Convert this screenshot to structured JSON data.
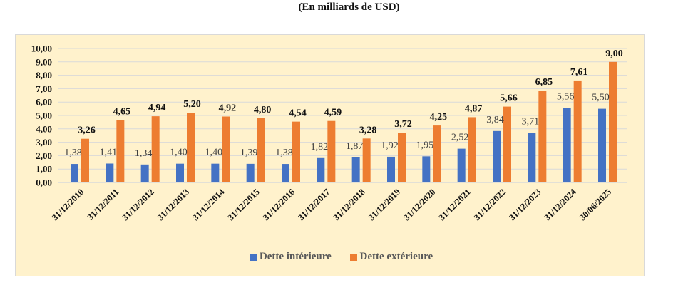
{
  "chart_data": {
    "type": "bar",
    "title": "(En milliards de USD)",
    "xlabel": "",
    "ylabel": "",
    "ylim": [
      0,
      10
    ],
    "yticks": [
      "0,00",
      "1,00",
      "2,00",
      "3,00",
      "4,00",
      "5,00",
      "6,00",
      "7,00",
      "8,00",
      "9,00",
      "10,00"
    ],
    "grid": true,
    "legend_position": "bottom",
    "categories": [
      "31/12/2010",
      "31/12/2011",
      "31/12/2012",
      "31/12/2013",
      "31/12/2014",
      "31/12/2015",
      "31/12/2016",
      "31/12/2017",
      "31/12/2018",
      "31/12/2019",
      "31/12/2020",
      "31/12/2021",
      "31/12/2022",
      "31/12/2023",
      "31/12/2024",
      "30/06/2025"
    ],
    "series": [
      {
        "name": "Dette intérieure",
        "color": "#4472c4",
        "values": [
          1.38,
          1.41,
          1.34,
          1.4,
          1.4,
          1.39,
          1.38,
          1.82,
          1.87,
          1.92,
          1.95,
          2.52,
          3.84,
          3.71,
          5.56,
          5.5
        ],
        "labels": [
          "1,38",
          "1,41",
          "1,34",
          "1,40",
          "1,40",
          "1,39",
          "1,38",
          "1,82",
          "1,87",
          "1,92",
          "1,95",
          "2,52",
          "3,84",
          "3,71",
          "5,56",
          "5,50"
        ]
      },
      {
        "name": "Dette extérieure",
        "color": "#ed7d31",
        "values": [
          3.26,
          4.65,
          4.94,
          5.2,
          4.92,
          4.8,
          4.54,
          4.59,
          3.28,
          3.72,
          4.25,
          4.87,
          5.66,
          6.85,
          7.61,
          9.0
        ],
        "labels": [
          "3,26",
          "4,65",
          "4,94",
          "5,20",
          "4,92",
          "4,80",
          "4,54",
          "4,59",
          "3,28",
          "3,72",
          "4,25",
          "4,87",
          "5,66",
          "6,85",
          "7,61",
          "9,00"
        ]
      }
    ]
  },
  "page": {
    "background": "#fff2cc",
    "gridline_color": "#d9d9d9"
  }
}
